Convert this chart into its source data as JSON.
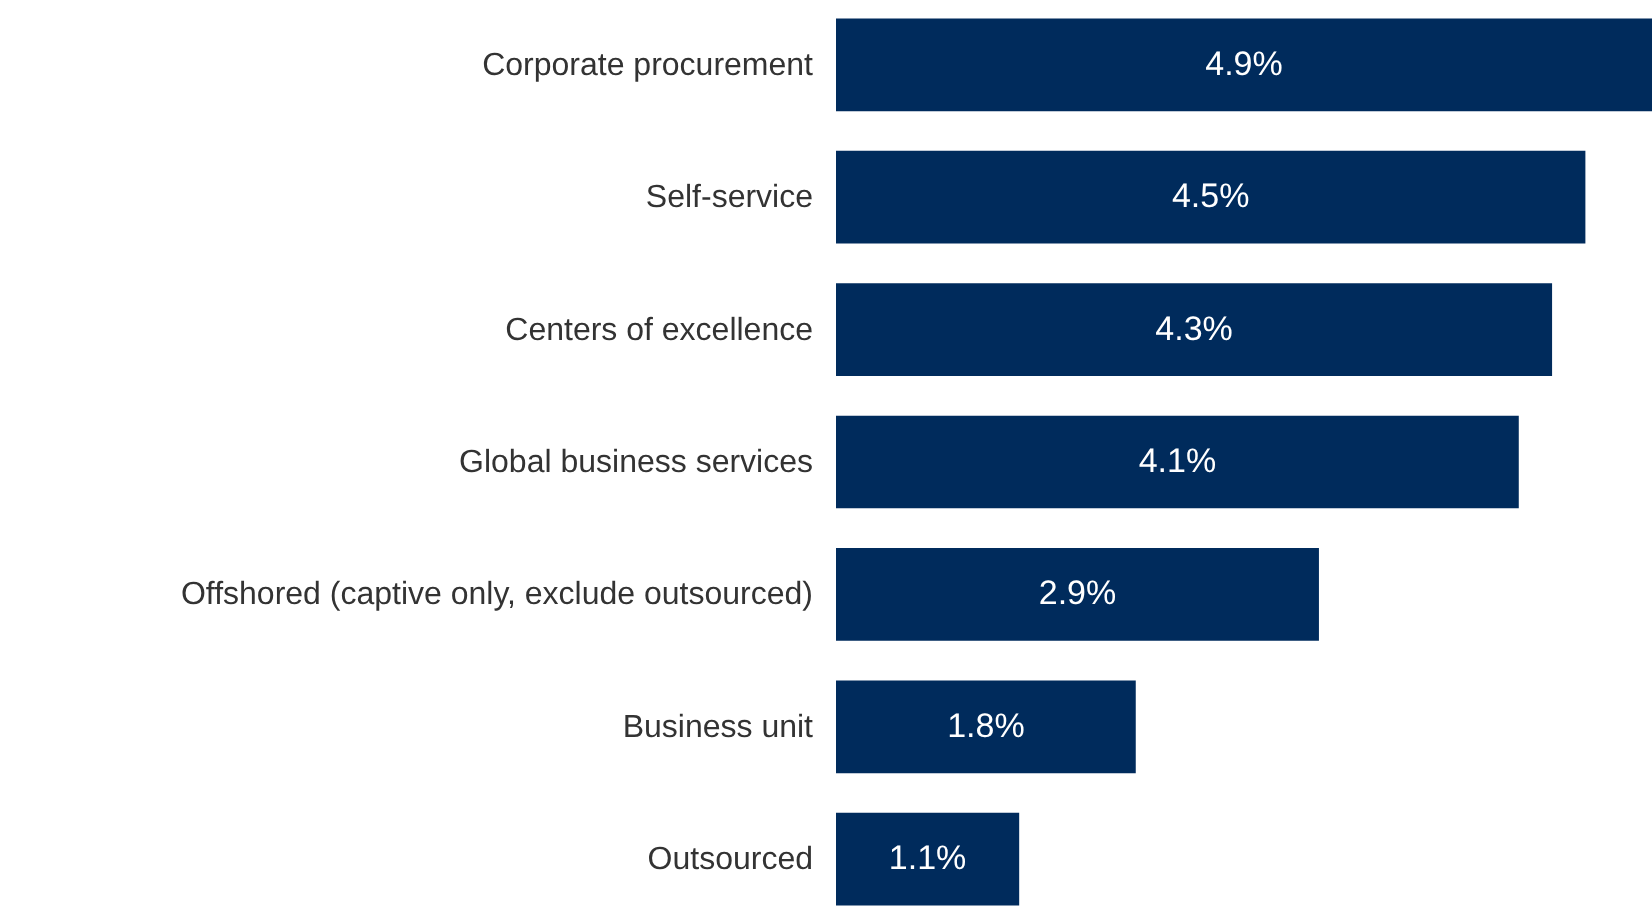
{
  "chart_data": {
    "type": "bar",
    "orientation": "horizontal",
    "categories": [
      "Corporate procurement",
      "Self-service",
      "Centers of excellence",
      "Global business services",
      "Offshored (captive only, exclude outsourced)",
      "Business unit",
      "Outsourced"
    ],
    "values": [
      4.9,
      4.5,
      4.3,
      4.1,
      2.9,
      1.8,
      1.1
    ],
    "value_labels": [
      "4.9%",
      "4.5%",
      "4.3%",
      "4.1%",
      "2.9%",
      "1.8%",
      "1.1%"
    ],
    "color": "#002b5c"
  }
}
